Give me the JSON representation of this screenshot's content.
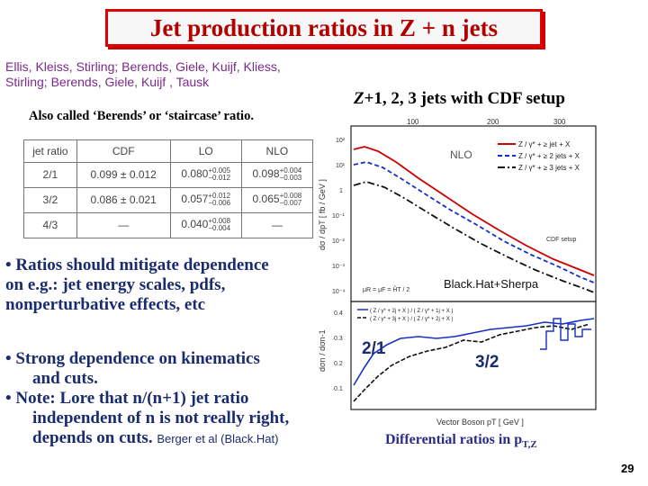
{
  "slide": {
    "title": "Jet production ratios in Z + n jets",
    "page_number": "29"
  },
  "refs": {
    "line1": "Ellis, Kleiss, Stirling; Berends,  Giele, Kuijf, Kliess,",
    "line2": "Stirling; Berends, Giele, Kuijf , Tausk"
  },
  "also_called": "Also called ‘Berends’ or ‘staircase’ ratio.",
  "table": {
    "headers": [
      "jet ratio",
      "CDF",
      "LO",
      "NLO"
    ],
    "rows": [
      {
        "ratio": "2/1",
        "cdf": "0.099 ± 0.012",
        "lo": "0.080",
        "nlo": "0.098"
      },
      {
        "ratio": "3/2",
        "cdf": "0.086 ± 0.021",
        "lo": "0.057",
        "nlo": "0.065"
      },
      {
        "ratio": "4/3",
        "cdf": "—",
        "lo": "0.040",
        "nlo": "—"
      }
    ],
    "lo_err": [
      [
        "+0.005",
        "−0.012"
      ],
      [
        "+0.012",
        "−0.006"
      ],
      [
        "+0.008",
        "−0.004"
      ]
    ],
    "nlo_err": [
      [
        "+0.004",
        "−0.003"
      ],
      [
        "+0.008",
        "−0.007"
      ]
    ]
  },
  "bullets": {
    "b1_l1": "• Ratios should mitigate dependence",
    "b1_l2": "on e.g.:  jet energy scales, pdfs,",
    "b1_l3": " nonperturbative effects, etc",
    "b2_l1": "• Strong dependence on kinematics",
    "b2_l2": "and cuts.",
    "b2_l3": "• Note: Lore that n/(n+1) jet ratio",
    "b2_l4": "independent of n is not really right,",
    "b2_l5": "depends on cuts.",
    "berger": "Berger et al (Black.Hat)"
  },
  "right": {
    "title_prefix": "Z",
    "title_rest": "+1, 2, 3 jets with CDF setup",
    "plot_nlo": "NLO",
    "legend1": "Z / γ* + ≥ jet + X",
    "legend2": "Z / γ* + ≥ 2 jets + X",
    "legend3": "Z / γ* + ≥ 3 jets + X",
    "cdf_setup": "CDF setup",
    "blackhat": "Black.Hat+Sherpa",
    "mu_label": "μR = μF = ĤT / 2",
    "ratio21": "2/1",
    "ratio32": "3/2",
    "xaxis": "Vector Boson  pT  [ GeV ]",
    "yaxis_top": "dσ / dpT  [ fb / GeV ]",
    "yaxis_bot": "dσn / dσn-1",
    "xticks_top": [
      "100",
      "200",
      "300"
    ],
    "yticks": [
      "10²",
      "10¹",
      "1",
      "10⁻¹",
      "10⁻²",
      "10⁻³",
      "10⁻⁴"
    ],
    "ratio_yticks": [
      "0.4",
      "0.3",
      "0.2",
      "0.1"
    ],
    "ratio_legend1": "( Z / γ* + 2j + X ) / ( Z / γ* + 1j + X )",
    "ratio_legend2": "( Z / γ* + 3j + X ) / ( Z / γ* + 2j + X )",
    "diff_label_prefix": "Differential ratios  in p",
    "diff_label_sub": "T,Z"
  },
  "colors": {
    "title_border": "#e00000",
    "title_text": "#b00000",
    "bullet_text": "#1a2c6e",
    "refs_text": "#7a2a8a",
    "series1": "#cc0000",
    "series2": "#1530c8",
    "series3": "#111111"
  }
}
